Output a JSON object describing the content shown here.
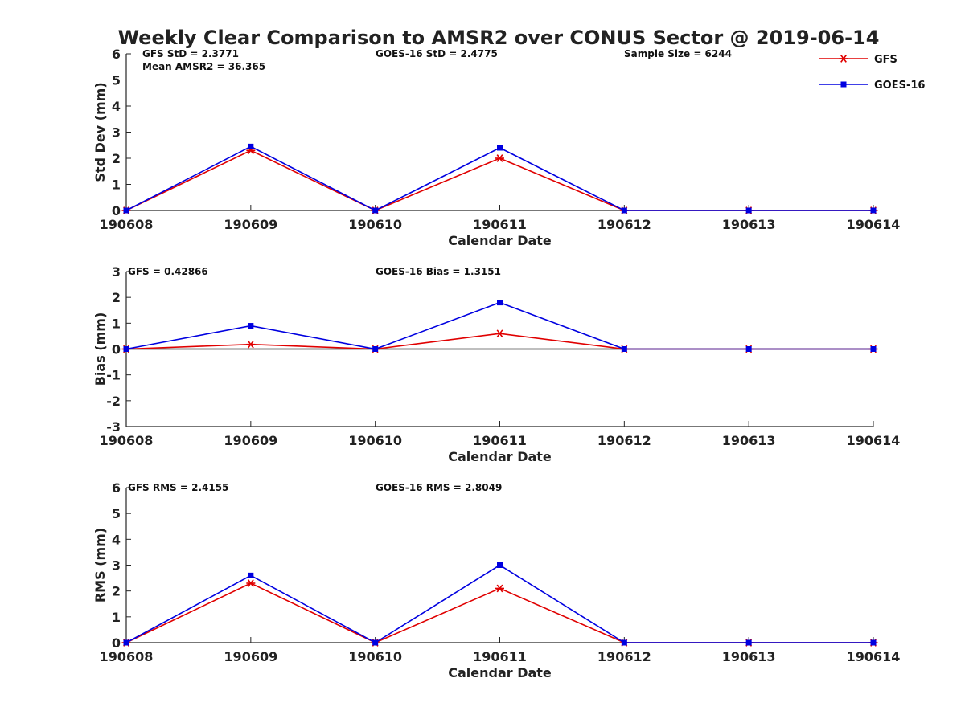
{
  "chart_data": {
    "type": "line",
    "title": "Weekly Clear Comparison to AMSR2 over CONUS Sector @ 2019-06-14",
    "categories": [
      "190608",
      "190609",
      "190610",
      "190611",
      "190612",
      "190613",
      "190614"
    ],
    "legend": {
      "placement": "top-right",
      "entries": [
        {
          "name": "GFS",
          "color": "#e00000",
          "marker": "asterisk"
        },
        {
          "name": "GOES-16",
          "color": "#0000e0",
          "marker": "square"
        }
      ]
    },
    "panels": [
      {
        "xlabel": "Calendar Date",
        "ylabel": "Std Dev (mm)",
        "ylim": [
          0,
          6
        ],
        "yticks": [
          0,
          1,
          2,
          3,
          4,
          5,
          6
        ],
        "zero_line": false,
        "annotations": {
          "left": "GFS StD = 2.3771",
          "left2": "Mean AMSR2 = 36.365",
          "middle": "GOES-16 StD = 2.4775",
          "right": "Sample Size = 6244"
        },
        "series": [
          {
            "name": "GFS",
            "values": [
              0,
              2.3,
              0,
              2.0,
              0,
              0,
              0
            ]
          },
          {
            "name": "GOES-16",
            "values": [
              0,
              2.45,
              0,
              2.4,
              0,
              0,
              0
            ]
          }
        ]
      },
      {
        "xlabel": "Calendar Date",
        "ylabel": "Bias (mm)",
        "ylim": [
          -3,
          3
        ],
        "yticks": [
          -3,
          -2,
          -1,
          0,
          1,
          2,
          3
        ],
        "zero_line": true,
        "annotations": {
          "left": "GFS = 0.42866",
          "middle": "GOES-16 Bias  = 1.3151"
        },
        "series": [
          {
            "name": "GFS",
            "values": [
              0,
              0.18,
              0,
              0.6,
              0,
              0,
              0
            ]
          },
          {
            "name": "GOES-16",
            "values": [
              0,
              0.9,
              0,
              1.8,
              0,
              0,
              0
            ]
          }
        ]
      },
      {
        "xlabel": "Calendar Date",
        "ylabel": "RMS (mm)",
        "ylim": [
          0,
          6
        ],
        "yticks": [
          0,
          1,
          2,
          3,
          4,
          5,
          6
        ],
        "zero_line": false,
        "annotations": {
          "left": "GFS RMS = 2.4155",
          "middle": "GOES-16 RMS = 2.8049"
        },
        "series": [
          {
            "name": "GFS",
            "values": [
              0,
              2.3,
              0,
              2.1,
              0,
              0,
              0
            ]
          },
          {
            "name": "GOES-16",
            "values": [
              0,
              2.6,
              0,
              3.0,
              0,
              0,
              0
            ]
          }
        ]
      }
    ]
  }
}
